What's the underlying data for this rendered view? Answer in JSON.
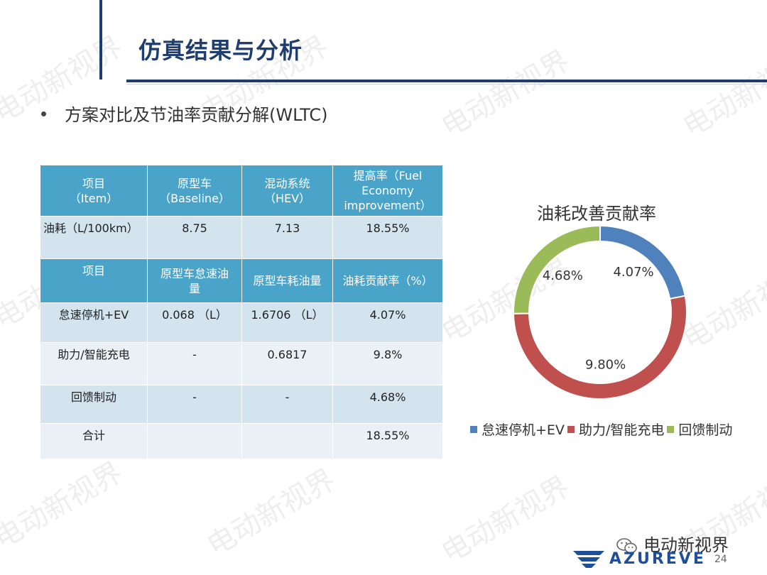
{
  "slide": {
    "title": "仿真结果与分析",
    "bullet": "方案对比及节油率贡献分解(WLTC)",
    "page_number": "24",
    "watermark": "电动新视界",
    "footer_account": "电动新视界",
    "logo_text": "AZUREVE"
  },
  "table": {
    "header1": [
      "项目\n（Item）",
      "原型车\n（Baseline）",
      "混动系统\n（HEV）",
      "提高率（Fuel\nEconomy\nimprovement）"
    ],
    "row1": [
      "油耗（L/100km）",
      "8.75",
      "7.13",
      "18.55%"
    ],
    "header2": [
      "项目",
      "原型车怠速油\n量",
      "原型车耗油量",
      "油耗贡献率（%）"
    ],
    "rows": [
      [
        "怠速停机+EV",
        "0.068 （L）",
        "1.6706 （L）",
        "4.07%"
      ],
      [
        "助力/智能充电",
        "-",
        "0.6817",
        "9.8%"
      ],
      [
        "回馈制动",
        "-",
        "-",
        "4.68%"
      ],
      [
        "合计",
        "",
        "",
        "18.55%"
      ]
    ]
  },
  "chart_data": {
    "type": "pie",
    "title": "油耗改善贡献率",
    "donut": true,
    "categories": [
      "怠速停机+EV",
      "助力/智能充电",
      "回馈制动"
    ],
    "values": [
      4.07,
      9.8,
      4.68
    ],
    "labels": [
      "4.07%",
      "9.80%",
      "4.68%"
    ],
    "colors": [
      "#4f81bd",
      "#c0504d",
      "#9bbb59"
    ],
    "legend_position": "bottom"
  }
}
